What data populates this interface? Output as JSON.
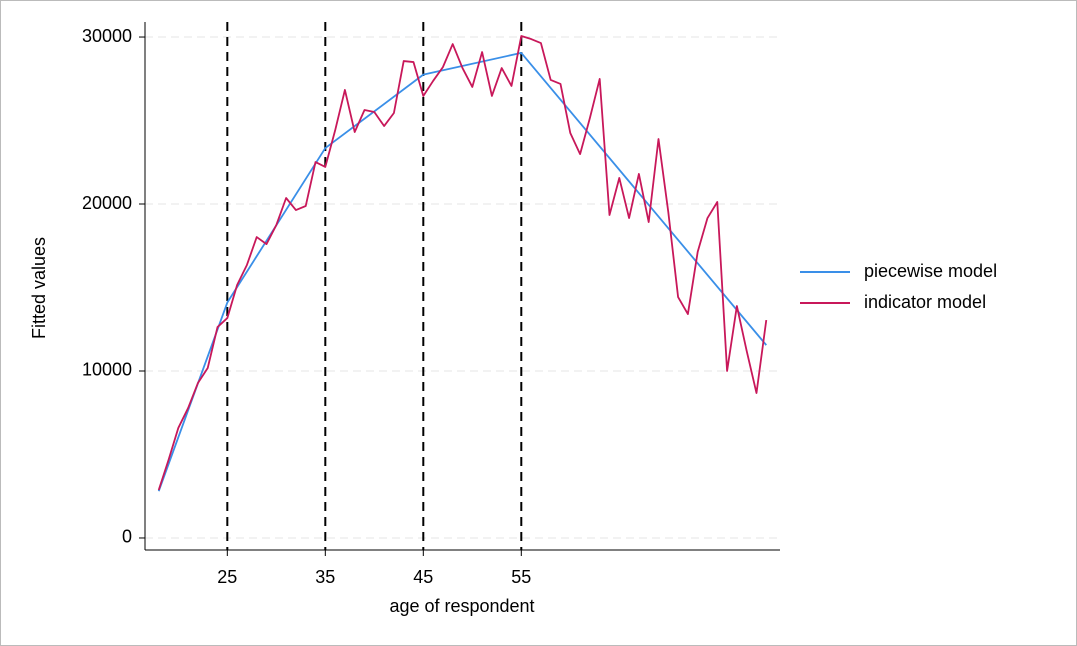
{
  "chart_data": {
    "type": "line",
    "x_label": "age of respondent",
    "y_label": "Fitted values",
    "xlim": [
      16.6,
      81.4
    ],
    "ylim": [
      -720,
      30900
    ],
    "xticks": [
      25,
      35,
      45,
      55
    ],
    "yticks": [
      0,
      10000,
      20000,
      30000
    ],
    "vlines": [
      25,
      35,
      45,
      55
    ],
    "grid": true,
    "legend": "right",
    "series": [
      {
        "name": "piecewise model",
        "color": "#3a8fe8",
        "x": [
          18,
          25,
          35,
          45,
          55,
          80
        ],
        "values": [
          2800,
          14100,
          23350,
          27750,
          29050,
          11550
        ]
      },
      {
        "name": "indicator model",
        "color": "#c8185a",
        "x": [
          18,
          19,
          20,
          21,
          22,
          23,
          24,
          25,
          26,
          27,
          28,
          29,
          30,
          31,
          32,
          33,
          34,
          35,
          36,
          37,
          38,
          39,
          40,
          41,
          42,
          43,
          44,
          45,
          46,
          47,
          48,
          49,
          50,
          51,
          52,
          53,
          54,
          55,
          56,
          57,
          58,
          59,
          60,
          61,
          62,
          63,
          64,
          65,
          66,
          67,
          68,
          69,
          70,
          71,
          72,
          73,
          74,
          75,
          76,
          77,
          78,
          79,
          80
        ],
        "values": [
          2870,
          4670,
          6590,
          7780,
          9280,
          10180,
          12630,
          13170,
          15150,
          16350,
          18020,
          17600,
          18740,
          20360,
          19640,
          19880,
          22510,
          22220,
          24400,
          26830,
          24310,
          25630,
          25510,
          24670,
          25450,
          28560,
          28500,
          26470,
          27370,
          28200,
          29580,
          28140,
          27010,
          29100,
          26470,
          28140,
          27070,
          30060,
          29880,
          29640,
          27430,
          27190,
          24250,
          22990,
          25150,
          27490,
          19340,
          21560,
          19160,
          21800,
          18920,
          23890,
          19520,
          14430,
          13410,
          17130,
          19160,
          20120,
          10000,
          13890,
          11200,
          8680,
          13050
        ]
      }
    ]
  }
}
